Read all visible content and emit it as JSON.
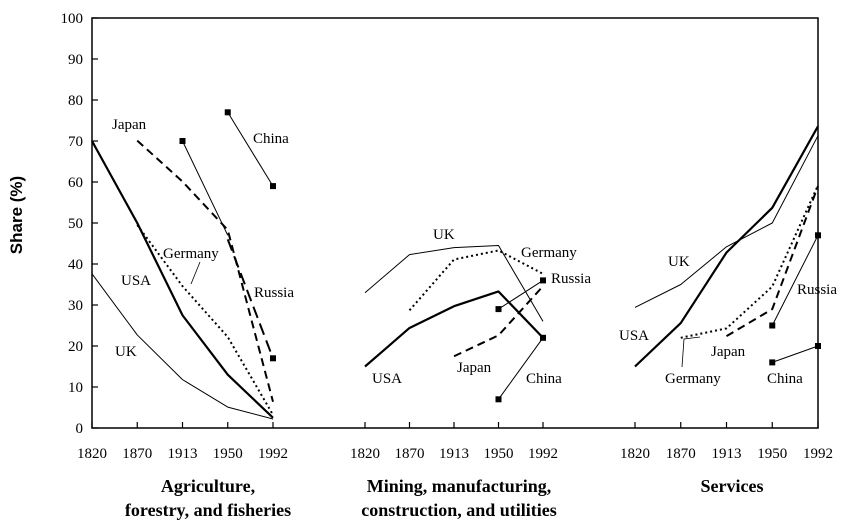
{
  "chart_data": {
    "type": "line",
    "ylabel": "Share (%)",
    "ylim": [
      0,
      100
    ],
    "y_ticks": [
      "0",
      "10",
      "20",
      "30",
      "40",
      "50",
      "60",
      "70",
      "80",
      "90",
      "100"
    ],
    "x_ticks": [
      "1820",
      "1870",
      "1913",
      "1950",
      "1992"
    ],
    "grid": false,
    "legend": "inline labels",
    "panels": [
      {
        "title_lines": [
          "Agriculture,",
          "forestry, and fisheries"
        ],
        "series": [
          {
            "name": "UK",
            "style": "thin",
            "points": [
              [
                0,
                37.6
              ],
              [
                1,
                22.7
              ],
              [
                2,
                11.8
              ],
              [
                3,
                5.1
              ],
              [
                4,
                2.2
              ]
            ]
          },
          {
            "name": "USA",
            "style": "thick",
            "points": [
              [
                0,
                70
              ],
              [
                1,
                50
              ],
              [
                2,
                27.5
              ],
              [
                3,
                13
              ],
              [
                4,
                2.5
              ]
            ]
          },
          {
            "name": "Germany",
            "style": "dotted",
            "points": [
              [
                1,
                49.5
              ],
              [
                2,
                34.6
              ],
              [
                3,
                22.2
              ],
              [
                4,
                3.2
              ]
            ]
          },
          {
            "name": "Japan",
            "style": "dashed",
            "points": [
              [
                1,
                70.1
              ],
              [
                2,
                60.1
              ],
              [
                3,
                48.3
              ],
              [
                4,
                6.4
              ]
            ]
          },
          {
            "name": "Russia",
            "style": "long-dashed",
            "marker": "square-end",
            "points": [
              [
                3,
                46
              ],
              [
                4,
                17
              ]
            ]
          },
          {
            "name": "China",
            "style": "thin",
            "marker": "square",
            "points": [
              [
                3,
                77
              ],
              [
                4,
                59
              ]
            ]
          },
          {
            "name": "",
            "style": "thin",
            "marker": "square-start",
            "points": [
              [
                2,
                70
              ],
              [
                3,
                47
              ]
            ]
          }
        ]
      },
      {
        "title_lines": [
          "Mining, manufacturing,",
          "construction, and utilities"
        ],
        "series": [
          {
            "name": "UK",
            "style": "thin",
            "points": [
              [
                0,
                33
              ],
              [
                1,
                42.3
              ],
              [
                2,
                44
              ],
              [
                3,
                44.5
              ],
              [
                4,
                26
              ]
            ]
          },
          {
            "name": "USA",
            "style": "thick",
            "points": [
              [
                0,
                15
              ],
              [
                1,
                24.4
              ],
              [
                2,
                29.7
              ],
              [
                3,
                33.3
              ],
              [
                4,
                22
              ]
            ]
          },
          {
            "name": "Germany",
            "style": "dotted",
            "points": [
              [
                1,
                28.7
              ],
              [
                2,
                41.1
              ],
              [
                3,
                43.3
              ],
              [
                4,
                37.6
              ]
            ]
          },
          {
            "name": "Japan",
            "style": "dashed",
            "points": [
              [
                2,
                17.5
              ],
              [
                3,
                22.6
              ],
              [
                4,
                34.6
              ]
            ]
          },
          {
            "name": "Russia",
            "style": "thin",
            "marker": "square",
            "points": [
              [
                3,
                29
              ],
              [
                4,
                36
              ]
            ]
          },
          {
            "name": "China",
            "style": "thin",
            "marker": "square",
            "points": [
              [
                3,
                7
              ],
              [
                4,
                22
              ]
            ]
          }
        ]
      },
      {
        "title_lines": [
          "Services"
        ],
        "series": [
          {
            "name": "UK",
            "style": "thin",
            "points": [
              [
                0,
                29.4
              ],
              [
                1,
                35
              ],
              [
                2,
                44.2
              ],
              [
                3,
                50
              ],
              [
                4,
                71.3
              ]
            ]
          },
          {
            "name": "USA",
            "style": "thick",
            "points": [
              [
                0,
                15
              ],
              [
                1,
                25.6
              ],
              [
                2,
                42.8
              ],
              [
                3,
                53.7
              ],
              [
                4,
                73.6
              ]
            ]
          },
          {
            "name": "Germany",
            "style": "dotted",
            "points": [
              [
                1,
                22
              ],
              [
                2,
                24.3
              ],
              [
                3,
                34.5
              ],
              [
                4,
                59.2
              ]
            ]
          },
          {
            "name": "Japan",
            "style": "dashed",
            "points": [
              [
                2,
                22.4
              ],
              [
                3,
                29
              ],
              [
                4,
                59
              ]
            ]
          },
          {
            "name": "Russia",
            "style": "thin",
            "marker": "square",
            "points": [
              [
                3,
                25
              ],
              [
                4,
                47
              ]
            ]
          },
          {
            "name": "China",
            "style": "thin",
            "marker": "square",
            "points": [
              [
                3,
                16
              ],
              [
                4,
                20
              ]
            ]
          }
        ]
      }
    ]
  }
}
